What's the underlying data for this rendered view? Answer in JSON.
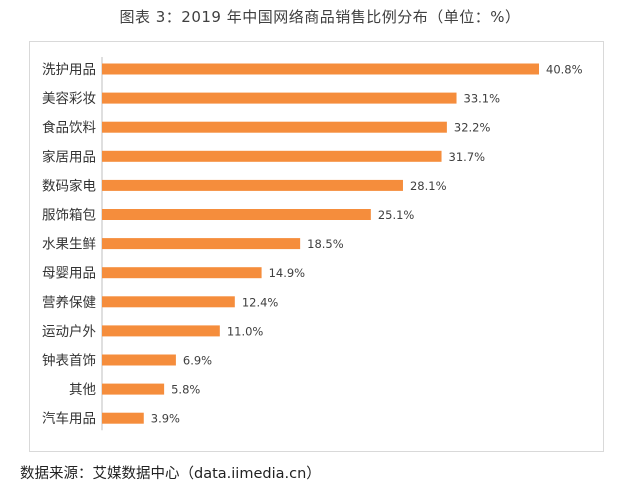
{
  "title": "图表 3：2019 年中国网络商品销售比例分布（单位：%）",
  "source": "数据来源：艾媒数据中心（data.iimedia.cn）",
  "colors": {
    "bar": "#f58d3c",
    "axis": "#bfbfbf",
    "frame": "#d9d9d9"
  },
  "chart_data": {
    "type": "bar",
    "orientation": "horizontal",
    "categories": [
      "洗护用品",
      "美容彩妆",
      "食品饮料",
      "家居用品",
      "数码家电",
      "服饰箱包",
      "水果生鲜",
      "母婴用品",
      "营养保健",
      "运动户外",
      "钟表首饰",
      "其他",
      "汽车用品"
    ],
    "values": [
      40.8,
      33.1,
      32.2,
      31.7,
      28.1,
      25.1,
      18.5,
      14.9,
      12.4,
      11.0,
      6.9,
      5.8,
      3.9
    ],
    "value_labels": [
      "40.8%",
      "33.1%",
      "32.2%",
      "31.7%",
      "28.1%",
      "25.1%",
      "18.5%",
      "14.9%",
      "12.4%",
      "11.0%",
      "6.9%",
      "5.8%",
      "3.9%"
    ],
    "xlim": [
      0,
      45
    ],
    "grid": false,
    "legend": "none"
  }
}
